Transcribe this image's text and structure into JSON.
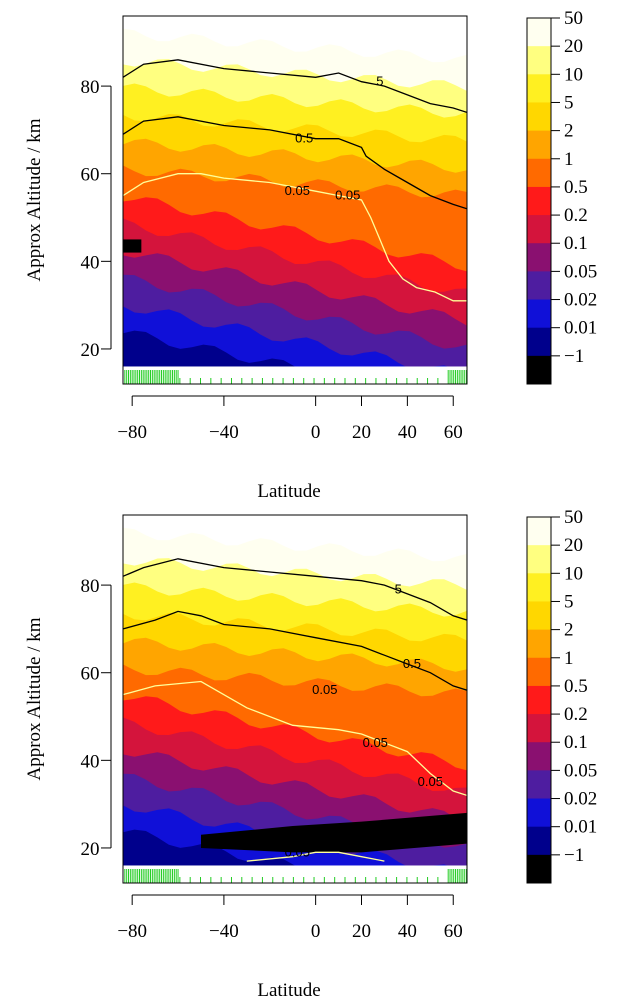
{
  "levels": [
    {
      "label": "50",
      "color": "#FFFFF0"
    },
    {
      "label": "20",
      "color": "#FFFF80"
    },
    {
      "label": "10",
      "color": "#FFF021"
    },
    {
      "label": "5",
      "color": "#FFD700"
    },
    {
      "label": "2",
      "color": "#FFA500"
    },
    {
      "label": "1",
      "color": "#FF6A00"
    },
    {
      "label": "0.5",
      "color": "#FF1A1A"
    },
    {
      "label": "0.2",
      "color": "#D4143C"
    },
    {
      "label": "0.1",
      "color": "#8A1070"
    },
    {
      "label": "0.05",
      "color": "#4E1DA0"
    },
    {
      "label": "0.02",
      "color": "#1010D8"
    },
    {
      "label": "0.01",
      "color": "#00008C"
    },
    {
      "label": "-1",
      "color": "#000000"
    }
  ],
  "chart_data": [
    {
      "type": "contour",
      "xlabel": "Latitude",
      "ylabel": "Approx Altitude / km",
      "xlim": [
        -84,
        66
      ],
      "ylim": [
        12,
        96
      ],
      "x_ticks": [
        -80,
        -40,
        0,
        20,
        40,
        60
      ],
      "y_ticks": [
        20,
        40,
        60,
        80
      ],
      "contour_lines": [
        {
          "label": "5",
          "color": "#000000",
          "points": [
            [
              -84,
              82
            ],
            [
              -75,
              85
            ],
            [
              -60,
              86
            ],
            [
              -40,
              84
            ],
            [
              -20,
              83
            ],
            [
              0,
              82
            ],
            [
              10,
              83
            ],
            [
              20,
              81
            ],
            [
              30,
              80
            ],
            [
              40,
              78
            ],
            [
              50,
              76
            ],
            [
              60,
              75
            ],
            [
              66,
              74
            ]
          ]
        },
        {
          "label": "0.5",
          "color": "#000000",
          "points": [
            [
              -84,
              69
            ],
            [
              -75,
              72
            ],
            [
              -60,
              73
            ],
            [
              -40,
              71
            ],
            [
              -20,
              70
            ],
            [
              0,
              68
            ],
            [
              10,
              68
            ],
            [
              20,
              66
            ],
            [
              22,
              64
            ],
            [
              30,
              61
            ],
            [
              40,
              58
            ],
            [
              50,
              55
            ],
            [
              60,
              53
            ],
            [
              66,
              52
            ]
          ]
        },
        {
          "label": "0.05",
          "color": "#FFFF99",
          "points": [
            [
              -84,
              55
            ],
            [
              -75,
              58
            ],
            [
              -60,
              60
            ],
            [
              -50,
              60
            ],
            [
              -40,
              59
            ],
            [
              -20,
              58
            ],
            [
              0,
              56
            ],
            [
              10,
              55
            ],
            [
              20,
              54
            ],
            [
              24,
              50
            ],
            [
              28,
              45
            ],
            [
              32,
              40
            ],
            [
              38,
              36
            ],
            [
              44,
              34
            ],
            [
              52,
              33
            ],
            [
              60,
              31
            ],
            [
              66,
              31
            ]
          ]
        }
      ],
      "contour_labels": [
        {
          "text": "5",
          "x": 28,
          "y": 81
        },
        {
          "text": "0.5",
          "x": -5,
          "y": 68
        },
        {
          "text": "0.05",
          "x": -8,
          "y": 56
        },
        {
          "text": "0.05",
          "x": 14,
          "y": 55
        }
      ]
    },
    {
      "type": "contour",
      "xlabel": "Latitude",
      "ylabel": "Approx Altitude / km",
      "xlim": [
        -84,
        66
      ],
      "ylim": [
        12,
        96
      ],
      "x_ticks": [
        -80,
        -40,
        0,
        20,
        40,
        60
      ],
      "y_ticks": [
        20,
        40,
        60,
        80
      ],
      "contour_lines": [
        {
          "label": "5",
          "color": "#000000",
          "points": [
            [
              -84,
              82
            ],
            [
              -75,
              84
            ],
            [
              -60,
              86
            ],
            [
              -40,
              84
            ],
            [
              -20,
              83
            ],
            [
              0,
              82
            ],
            [
              20,
              81
            ],
            [
              30,
              80
            ],
            [
              40,
              78
            ],
            [
              50,
              76
            ],
            [
              60,
              73
            ],
            [
              66,
              72
            ]
          ]
        },
        {
          "label": "0.5",
          "color": "#000000",
          "points": [
            [
              -84,
              70
            ],
            [
              -70,
              72
            ],
            [
              -60,
              74
            ],
            [
              -50,
              73
            ],
            [
              -40,
              71
            ],
            [
              -20,
              70
            ],
            [
              0,
              68
            ],
            [
              20,
              66
            ],
            [
              30,
              64
            ],
            [
              40,
              62
            ],
            [
              50,
              60
            ],
            [
              60,
              57
            ],
            [
              66,
              56
            ]
          ]
        },
        {
          "label": "0.05",
          "color": "#FFFF99",
          "points": [
            [
              -84,
              55
            ],
            [
              -70,
              57
            ],
            [
              -50,
              58
            ],
            [
              -30,
              52
            ],
            [
              -10,
              48
            ],
            [
              10,
              47
            ],
            [
              20,
              46
            ],
            [
              30,
              44
            ],
            [
              40,
              42
            ],
            [
              50,
              37
            ],
            [
              60,
              33
            ],
            [
              66,
              32
            ]
          ]
        },
        {
          "label": "0.05",
          "color": "#FFFF99",
          "points": [
            [
              -30,
              17
            ],
            [
              -10,
              18
            ],
            [
              0,
              19
            ],
            [
              10,
              19
            ],
            [
              20,
              18
            ],
            [
              30,
              17
            ]
          ]
        }
      ],
      "contour_labels": [
        {
          "text": "5",
          "x": 36,
          "y": 79
        },
        {
          "text": "0.5",
          "x": 42,
          "y": 62
        },
        {
          "text": "0.05",
          "x": 4,
          "y": 56
        },
        {
          "text": "0.05",
          "x": 26,
          "y": 44
        },
        {
          "text": "0.05",
          "x": 50,
          "y": 35
        },
        {
          "text": "0.05",
          "x": -8,
          "y": 19
        }
      ]
    }
  ]
}
